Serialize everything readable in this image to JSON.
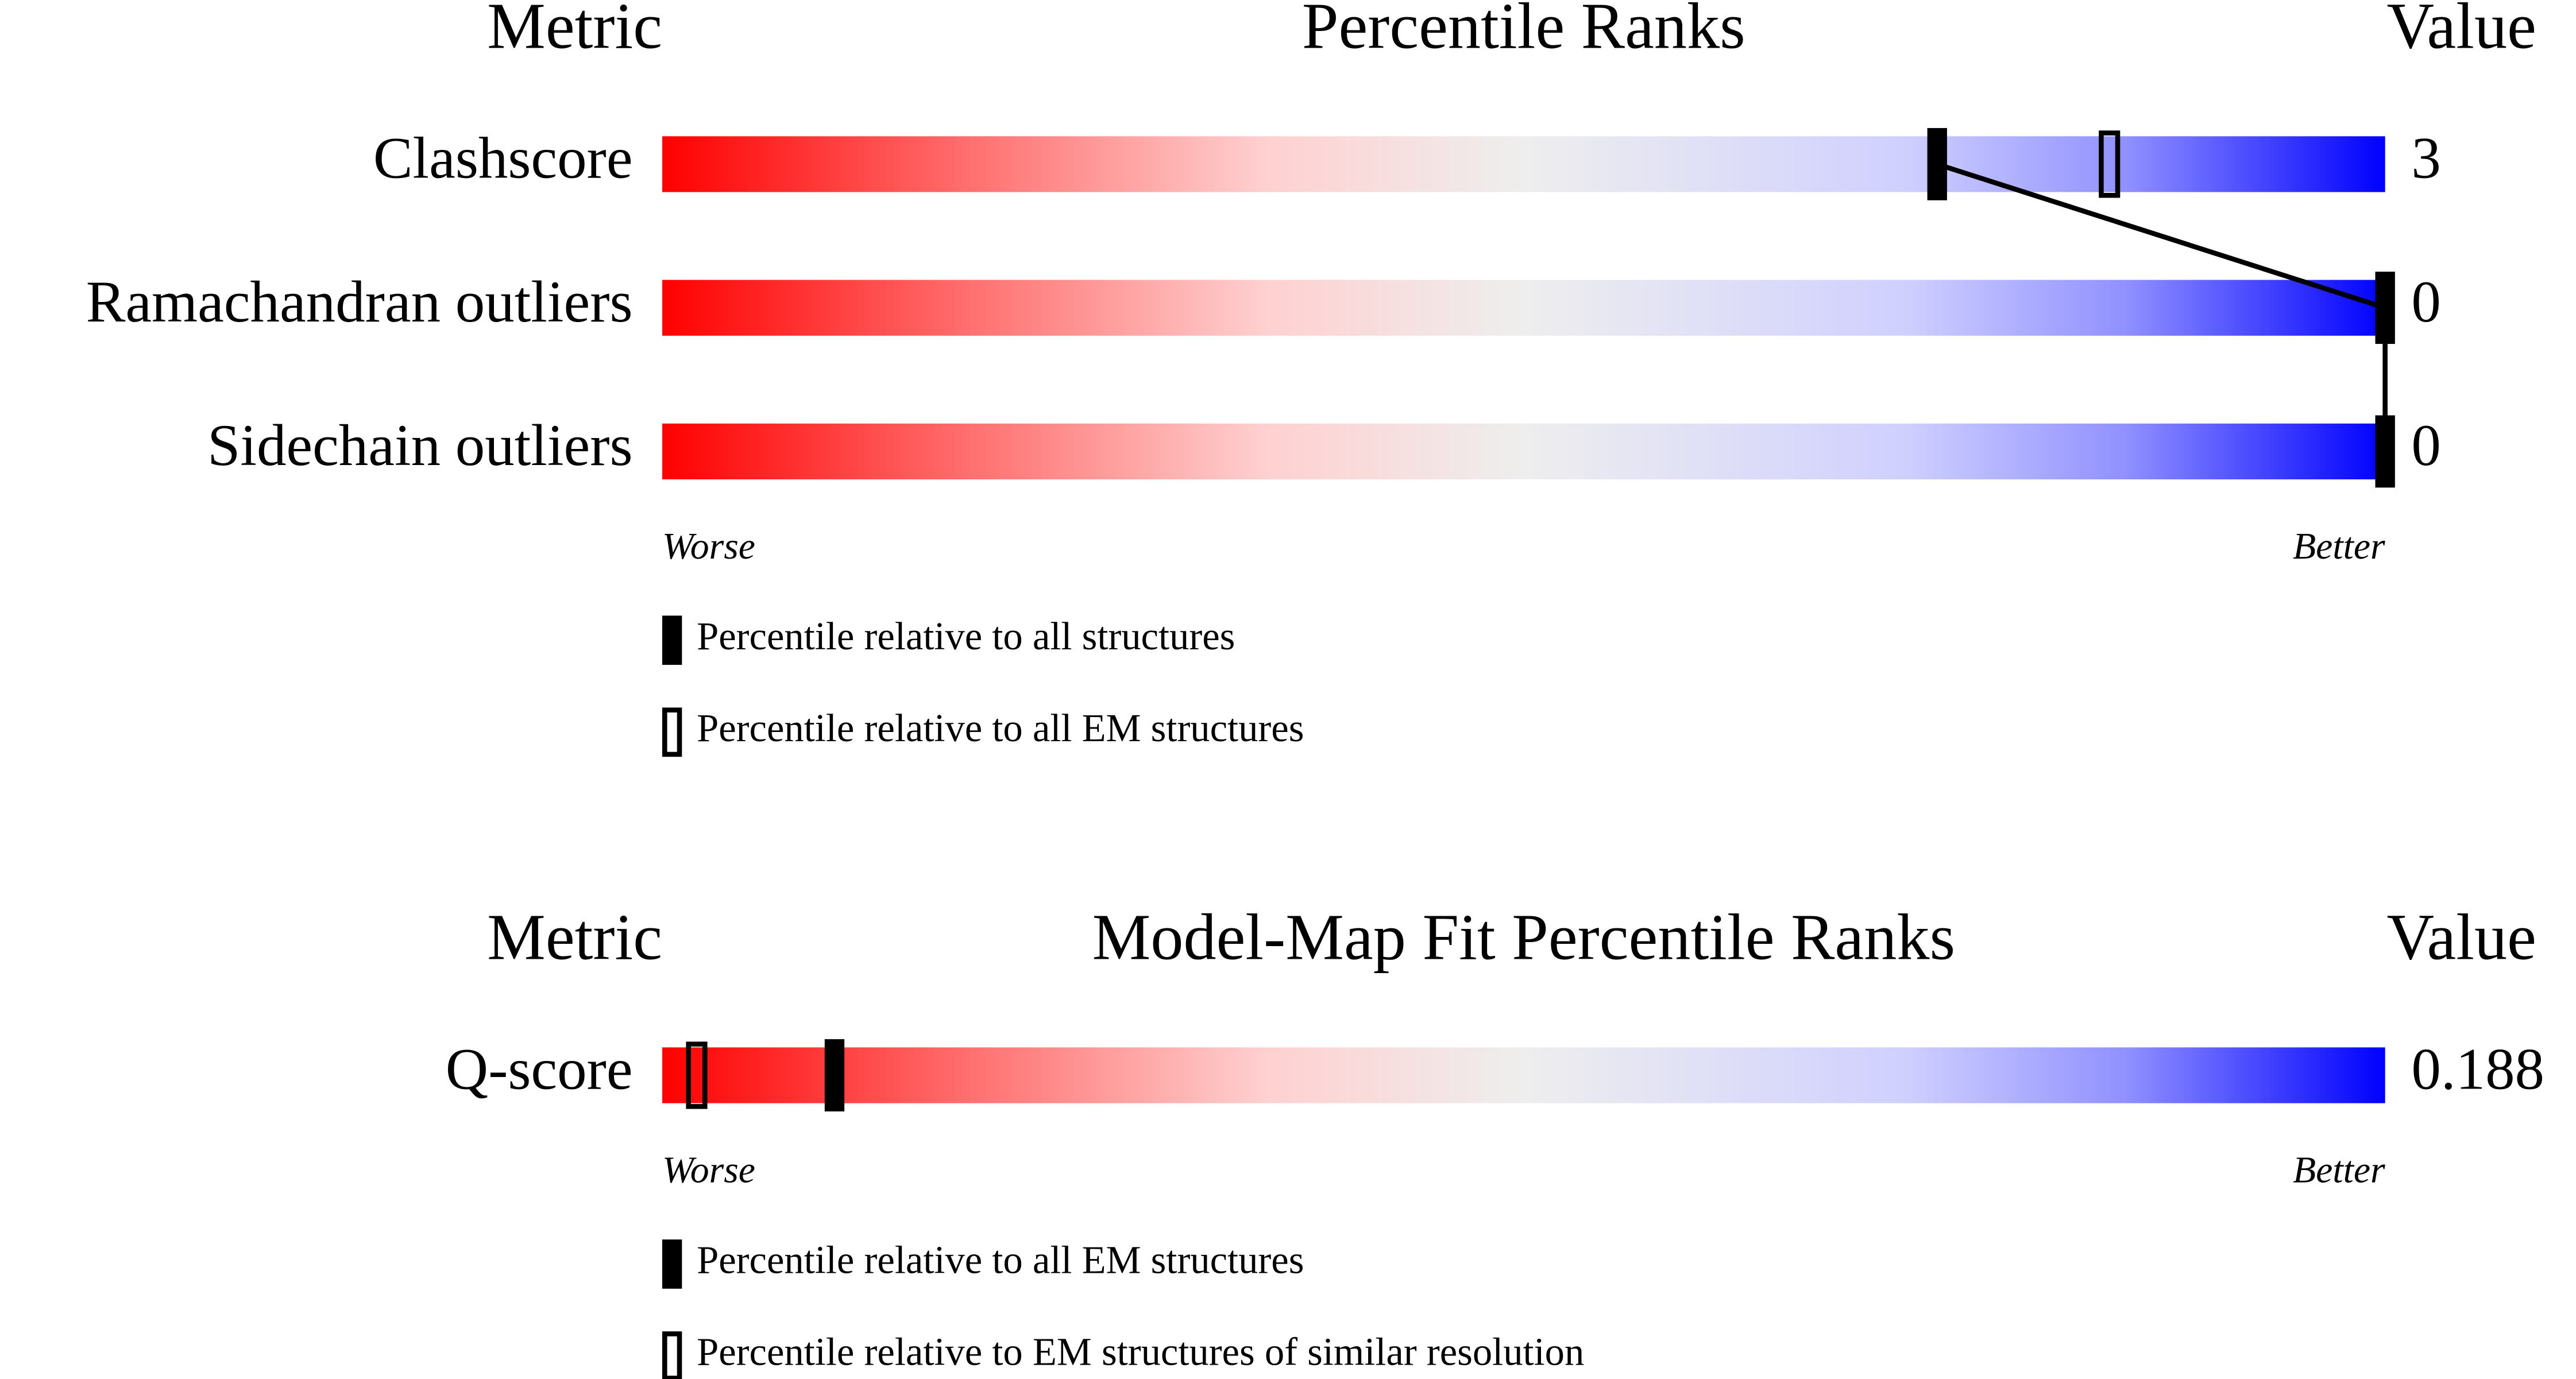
{
  "chart_data": [
    {
      "type": "slider",
      "metric_header": "Metric",
      "title": "Percentile Ranks",
      "value_header": "Value",
      "categories": [
        "Clashscore",
        "Ramachandran outliers",
        "Sidechain outliers"
      ],
      "values": [
        3,
        0,
        0
      ],
      "xlim": [
        0,
        100
      ],
      "worse_label": "Worse",
      "better_label": "Better",
      "series": [
        {
          "name": "Percentile relative to all structures",
          "color": "#000000",
          "values": [
            74,
            100,
            100
          ]
        },
        {
          "name": "Percentile relative to all EM structures",
          "color": "#000000",
          "values": [
            84,
            null,
            null
          ]
        }
      ]
    },
    {
      "type": "slider",
      "metric_header": "Metric",
      "title": "Model-Map Fit Percentile Ranks",
      "value_header": "Value",
      "categories": [
        "Q-score"
      ],
      "values": [
        0.188
      ],
      "xlim": [
        0,
        100
      ],
      "worse_label": "Worse",
      "better_label": "Better",
      "series": [
        {
          "name": "Percentile relative to all EM structures",
          "color": "#000000",
          "values": [
            10
          ]
        },
        {
          "name": "Percentile relative to EM structures of similar resolution",
          "color": "#000000",
          "values": [
            2
          ]
        }
      ]
    }
  ]
}
